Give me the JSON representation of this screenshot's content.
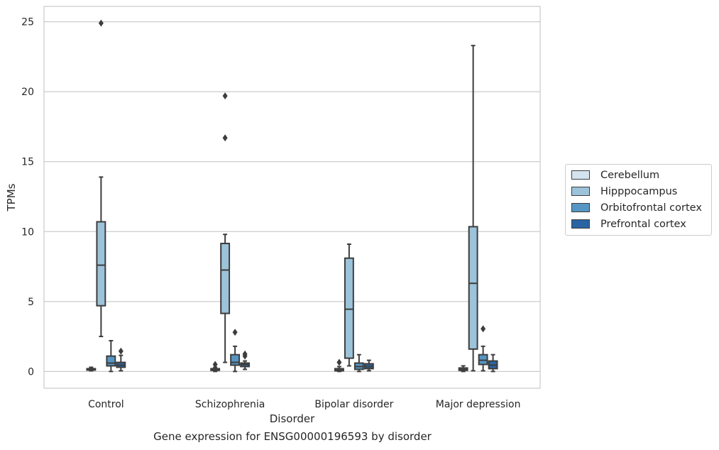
{
  "chart_data": {
    "type": "box",
    "caption": "Gene expression for ENSG00000196593 by disorder",
    "xlabel": "Disorder",
    "ylabel": "TPMs",
    "ylim": [
      -1.2,
      26.1
    ],
    "yticks": [
      0,
      5,
      10,
      15,
      20,
      25
    ],
    "grid": "horizontal",
    "legend_position": "right",
    "categories": [
      "Control",
      "Schizophrenia",
      "Bipolar disorder",
      "Major depression"
    ],
    "series": [
      {
        "name": "Cerebellum",
        "color": "#d4e3f0",
        "boxes": [
          {
            "whislo": 0.05,
            "q1": 0.1,
            "med": 0.15,
            "q3": 0.2,
            "whishi": 0.3,
            "fliers": []
          },
          {
            "whislo": 0.0,
            "q1": 0.08,
            "med": 0.12,
            "q3": 0.2,
            "whishi": 0.3,
            "fliers": [
              0.5
            ]
          },
          {
            "whislo": 0.0,
            "q1": 0.05,
            "med": 0.1,
            "q3": 0.2,
            "whishi": 0.35,
            "fliers": [
              0.65
            ]
          },
          {
            "whislo": 0.0,
            "q1": 0.08,
            "med": 0.15,
            "q3": 0.25,
            "whishi": 0.4,
            "fliers": []
          }
        ]
      },
      {
        "name": "Hipppocampus",
        "color": "#9cc3da",
        "boxes": [
          {
            "whislo": 2.5,
            "q1": 4.7,
            "med": 7.6,
            "q3": 10.7,
            "whishi": 13.9,
            "fliers": [
              24.9
            ]
          },
          {
            "whislo": 0.65,
            "q1": 4.15,
            "med": 7.25,
            "q3": 9.15,
            "whishi": 9.8,
            "fliers": [
              19.7,
              16.7
            ]
          },
          {
            "whislo": 0.4,
            "q1": 0.95,
            "med": 4.45,
            "q3": 8.1,
            "whishi": 9.1,
            "fliers": []
          },
          {
            "whislo": 0.05,
            "q1": 1.6,
            "med": 6.3,
            "q3": 10.35,
            "whishi": 23.3,
            "fliers": []
          }
        ]
      },
      {
        "name": "Orbitofrontal cortex",
        "color": "#5696c4",
        "boxes": [
          {
            "whislo": 0.0,
            "q1": 0.4,
            "med": 0.6,
            "q3": 1.1,
            "whishi": 2.2,
            "fliers": []
          },
          {
            "whislo": 0.0,
            "q1": 0.45,
            "med": 0.65,
            "q3": 1.2,
            "whishi": 1.8,
            "fliers": [
              2.8
            ]
          },
          {
            "whislo": 0.0,
            "q1": 0.15,
            "med": 0.35,
            "q3": 0.6,
            "whishi": 1.2,
            "fliers": []
          },
          {
            "whislo": 0.05,
            "q1": 0.5,
            "med": 0.8,
            "q3": 1.2,
            "whishi": 1.8,
            "fliers": [
              3.05
            ]
          }
        ]
      },
      {
        "name": "Prefrontal cortex",
        "color": "#2a64a2",
        "boxes": [
          {
            "whislo": 0.05,
            "q1": 0.3,
            "med": 0.45,
            "q3": 0.65,
            "whishi": 1.15,
            "fliers": [
              1.45
            ]
          },
          {
            "whislo": 0.15,
            "q1": 0.35,
            "med": 0.5,
            "q3": 0.6,
            "whishi": 0.75,
            "fliers": [
              1.1,
              1.25
            ]
          },
          {
            "whislo": 0.05,
            "q1": 0.2,
            "med": 0.35,
            "q3": 0.55,
            "whishi": 0.8,
            "fliers": []
          },
          {
            "whislo": 0.0,
            "q1": 0.2,
            "med": 0.45,
            "q3": 0.75,
            "whishi": 1.2,
            "fliers": []
          }
        ]
      }
    ]
  }
}
